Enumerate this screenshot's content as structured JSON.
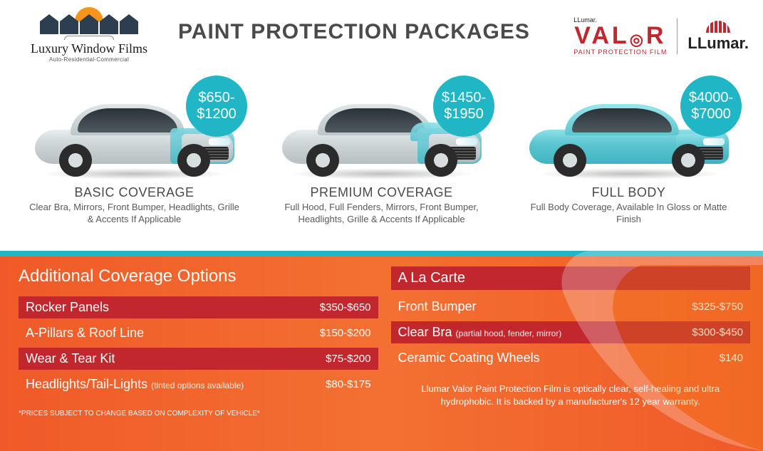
{
  "colors": {
    "accent_teal": "#21b6c6",
    "header_text": "#4a4a4a",
    "body_text": "#5a5a5a",
    "brand_red": "#c1272d",
    "bottom_bg_from": "#f05a28",
    "bottom_bg_to": "#f37032",
    "row_highlight": "#c1272d",
    "white": "#ffffff"
  },
  "typography": {
    "title_fontsize_pt": 22,
    "section_title_fontsize_pt": 18,
    "pkg_title_fontsize_pt": 14,
    "pkg_desc_fontsize_pt": 10,
    "row_fontsize_pt": 14,
    "price_fontsize_pt": 11,
    "disclaimer_fontsize_pt": 7
  },
  "logo": {
    "brand": "Luxury Window Films",
    "tagline": "Auto-Residential-Commercial"
  },
  "title": "PAINT PROTECTION PACKAGES",
  "valor": {
    "pre": "LLumar.",
    "word_left": "VAL",
    "word_right": "R",
    "sub": "PAINT PROTECTION FILM"
  },
  "llumar": {
    "text": "LLumar."
  },
  "packages": [
    {
      "price_line1": "$650-",
      "price_line2": "$1200",
      "title": "BASIC COVERAGE",
      "desc": "Clear Bra, Mirrors, Front Bumper, Headlights, Grille & Accents If Applicable",
      "coverage": "partial_front"
    },
    {
      "price_line1": "$1450-",
      "price_line2": "$1950",
      "title": "PREMIUM COVERAGE",
      "desc": "Full Hood, Full Fenders, Mirrors, Front Bumper, Headlights, Grille & Accents If Applicable",
      "coverage": "front_hood"
    },
    {
      "price_line1": "$4000-",
      "price_line2": "$7000",
      "title": "FULL BODY",
      "desc": "Full Body Coverage, Available In Gloss or Matte Finish",
      "coverage": "full"
    }
  ],
  "additional": {
    "title": "Additional Coverage Options",
    "rows": [
      {
        "label": "Rocker Panels",
        "sub": "",
        "price": "$350-$650",
        "highlight": true
      },
      {
        "label": "A-Pillars & Roof Line",
        "sub": "",
        "price": "$150-$200",
        "highlight": false
      },
      {
        "label": "Wear & Tear Kit",
        "sub": "",
        "price": "$75-$200",
        "highlight": true
      },
      {
        "label": "Headlights/Tail-Lights",
        "sub": "(tinted options available)",
        "price": "$80-$175",
        "highlight": false
      }
    ],
    "disclaimer": "*PRICES SUBJECT TO CHANGE BASED ON COMPLEXITY OF VEHICLE*"
  },
  "alacarte": {
    "title": "A La Carte",
    "rows": [
      {
        "label": "Front Bumper",
        "sub": "",
        "price": "$325-$750",
        "highlight": false
      },
      {
        "label": "Clear Bra",
        "sub": "(partial hood, fender, mirror)",
        "price": "$300-$450",
        "highlight": true
      },
      {
        "label": "Ceramic Coating Wheels",
        "sub": "",
        "price": "$140",
        "highlight": false
      }
    ],
    "footnote": "Llumar Valor Paint Protection Film is optically clear, self-healing and ultra hydrophobic. It is backed by a manufacturer's 12 year warranty."
  }
}
